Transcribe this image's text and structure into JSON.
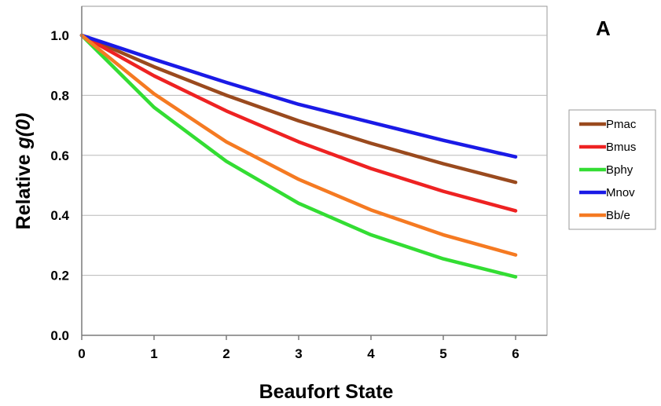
{
  "chart_data": {
    "type": "line",
    "panel_label": "A",
    "xlabel": "Beaufort State",
    "ylabel_prefix": "Relative ",
    "ylabel_italic": "g(0)",
    "xlim": [
      0,
      6
    ],
    "ylim": [
      0.0,
      1.0
    ],
    "x_ticks": [
      "0",
      "1",
      "2",
      "3",
      "4",
      "5",
      "6"
    ],
    "y_ticks": [
      "0.0",
      "0.2",
      "0.4",
      "0.6",
      "0.8",
      "1.0"
    ],
    "grid": true,
    "legend_position": "right",
    "x": [
      0,
      1,
      2,
      3,
      4,
      5,
      6
    ],
    "series": [
      {
        "name": "Pmac",
        "color": "#9a4a1e",
        "values": [
          1.0,
          0.895,
          0.8,
          0.715,
          0.64,
          0.572,
          0.51
        ]
      },
      {
        "name": "Bmus",
        "color": "#ee2222",
        "values": [
          1.0,
          0.865,
          0.748,
          0.645,
          0.556,
          0.48,
          0.415
        ]
      },
      {
        "name": "Bphy",
        "color": "#33dd33",
        "values": [
          1.0,
          0.76,
          0.58,
          0.44,
          0.335,
          0.255,
          0.195
        ]
      },
      {
        "name": "Mnov",
        "color": "#1a1ae6",
        "values": [
          1.0,
          0.92,
          0.843,
          0.77,
          0.71,
          0.65,
          0.595
        ]
      },
      {
        "name": "Bb/e",
        "color": "#f57a22",
        "values": [
          1.0,
          0.805,
          0.645,
          0.52,
          0.418,
          0.335,
          0.268
        ]
      }
    ]
  }
}
